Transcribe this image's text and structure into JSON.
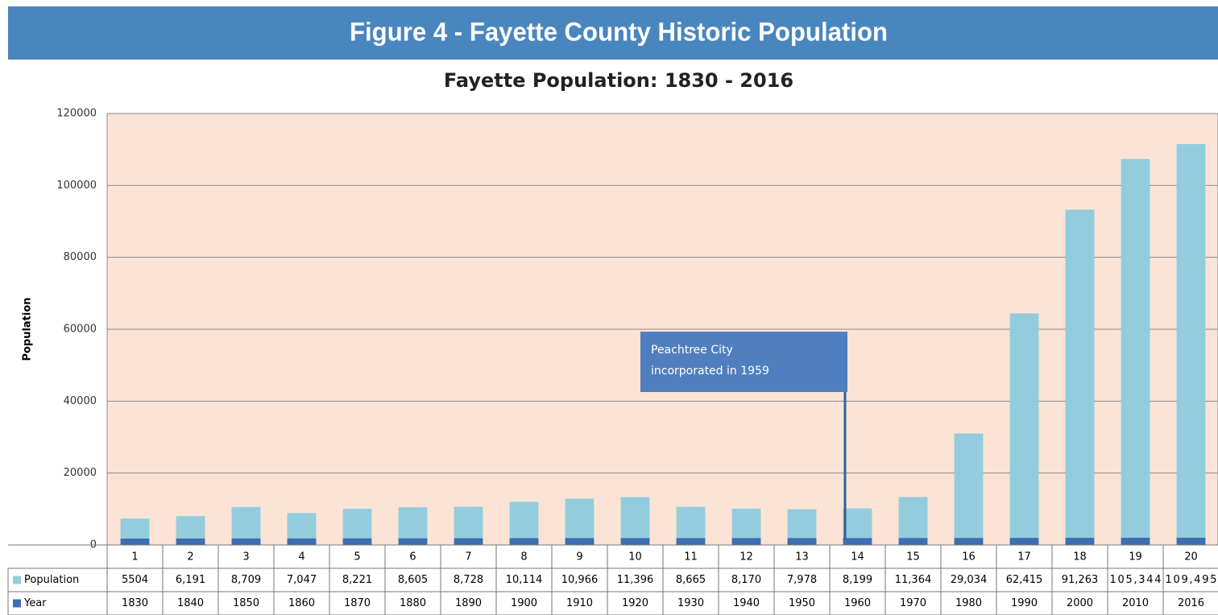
{
  "header": {
    "title": "Figure 4 - Fayette County Historic Population"
  },
  "chart_data": {
    "type": "stacked_bar",
    "title": "Fayette Population: 1830 - 2016",
    "y_label": "Population",
    "categories": [
      1,
      2,
      3,
      4,
      5,
      6,
      7,
      8,
      9,
      10,
      11,
      12,
      13,
      14,
      15,
      16,
      17,
      18,
      19,
      20
    ],
    "series": [
      {
        "name": "Year",
        "color": "#3d6eb0",
        "values": [
          1830,
          1840,
          1850,
          1860,
          1870,
          1880,
          1890,
          1900,
          1910,
          1920,
          1930,
          1940,
          1950,
          1960,
          1970,
          1980,
          1990,
          2000,
          2010,
          2016
        ]
      },
      {
        "name": "Population",
        "color": "#93cddd",
        "values": [
          5504,
          6191,
          8709,
          7047,
          8221,
          8605,
          8728,
          10114,
          10966,
          11396,
          8665,
          8170,
          7978,
          8199,
          11364,
          29034,
          62415,
          91263,
          105344,
          109495
        ],
        "value_labels": [
          "5504",
          "6,191",
          "8,709",
          "7,047",
          "8,221",
          "8,605",
          "8,728",
          "10,114",
          "10,966",
          "11,396",
          "8,665",
          "8,170",
          "7,978",
          "8,199",
          "11,364",
          "29,034",
          "62,415",
          "91,263",
          "105,344",
          "109,495"
        ]
      }
    ],
    "ylim": [
      0,
      120000
    ],
    "yticks": [
      0,
      20000,
      40000,
      60000,
      80000,
      100000,
      120000
    ],
    "grid": true,
    "annotation": [
      "Peachtree City",
      "incorporated in 1959"
    ]
  }
}
